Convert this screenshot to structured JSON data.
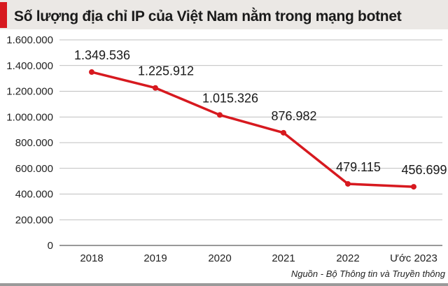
{
  "title": "Số lượng địa chỉ IP của Việt Nam nằm trong mạng botnet",
  "source": "Nguồn - Bộ Thông tin và Truyền thông",
  "colors": {
    "line": "#d7191f",
    "accent_bar": "#d7191f",
    "title_bg": "#ebe8e5",
    "grid": "#999999"
  },
  "chart_data": {
    "type": "line",
    "title": "Số lượng địa chỉ IP của Việt Nam nằm trong mạng botnet",
    "categories": [
      "2018",
      "2019",
      "2020",
      "2021",
      "2022",
      "Ước 2023"
    ],
    "values": [
      1349536,
      1225912,
      1015326,
      876982,
      479115,
      456699
    ],
    "data_labels": [
      "1.349.536",
      "1.225.912",
      "1.015.326",
      "876.982",
      "479.115",
      "456.699"
    ],
    "ylim": [
      0,
      1600000
    ],
    "yticks": [
      0,
      200000,
      400000,
      600000,
      800000,
      1000000,
      1200000,
      1400000,
      1600000
    ],
    "ytick_labels": [
      "0",
      "200.000",
      "400.000",
      "600.000",
      "800.000",
      "1.000.000",
      "1.200.000",
      "1.400.000",
      "1.600.000"
    ],
    "grid": true,
    "xlabel": "",
    "ylabel": ""
  }
}
